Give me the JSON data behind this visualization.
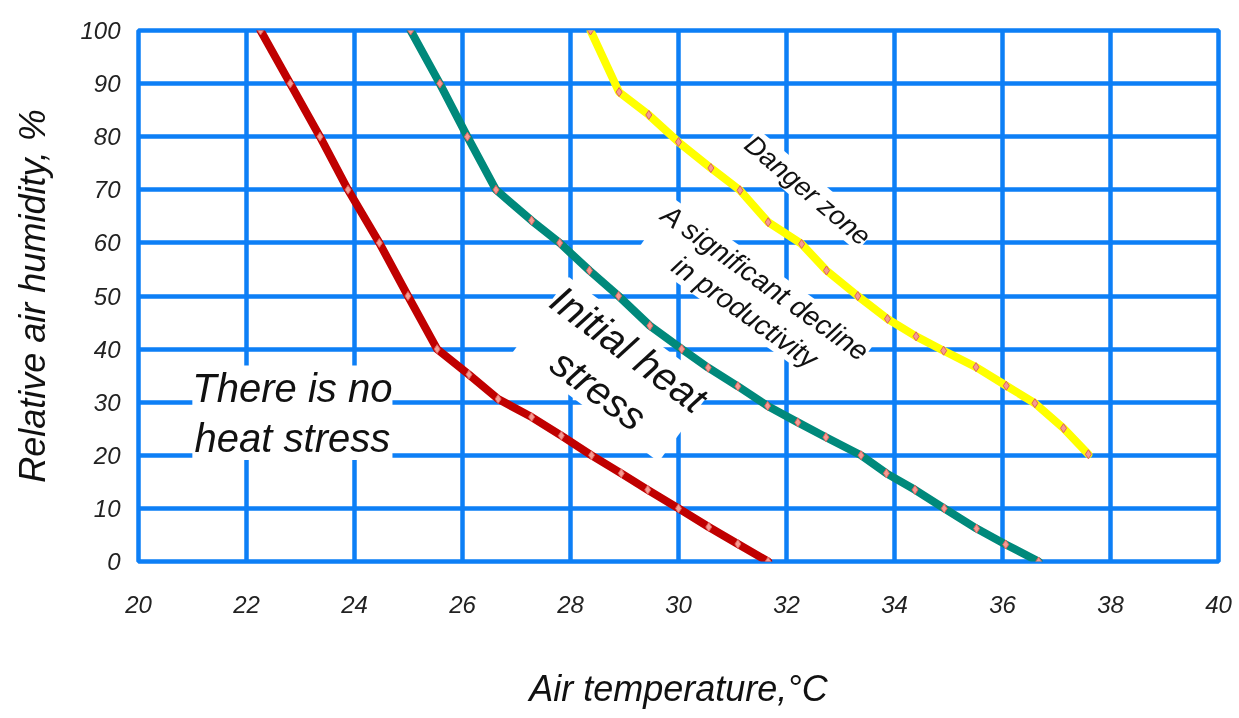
{
  "chart_data": {
    "type": "line",
    "xlabel": "Air temperature,°C",
    "ylabel": "Relative air humidity, %",
    "xlim": [
      20,
      40
    ],
    "ylim": [
      0,
      100
    ],
    "xticks": [
      20,
      22,
      24,
      26,
      28,
      30,
      32,
      34,
      36,
      38,
      40
    ],
    "yticks": [
      0,
      10,
      20,
      30,
      40,
      50,
      60,
      70,
      80,
      90,
      100
    ],
    "grid": true,
    "marker": "diamond",
    "line_style": "solid",
    "series": [
      {
        "color": "#c00000",
        "x": [
          22.26,
          22.81,
          23.36,
          23.88,
          24.46,
          24.99,
          25.53,
          26.12,
          26.66,
          27.28,
          27.83,
          28.39,
          28.94,
          29.43,
          30.0,
          30.56,
          31.1,
          31.66
        ],
        "values": [
          100,
          90,
          80,
          70,
          60,
          50,
          40,
          35.2,
          30.6,
          27.2,
          23.7,
          20,
          16.6,
          13.5,
          10,
          6.5,
          3.3,
          0
        ]
      },
      {
        "color": "#00897b",
        "x": [
          25.04,
          25.58,
          26.09,
          26.62,
          27.28,
          27.8,
          28.35,
          28.89,
          29.47,
          30.06,
          30.55,
          31.1,
          31.65,
          32.21,
          32.73,
          33.38,
          33.85,
          34.38,
          34.92,
          35.52,
          36.06,
          36.67
        ],
        "values": [
          100,
          90,
          80,
          70,
          64.2,
          60,
          54.8,
          50,
          44.4,
          40,
          36.5,
          33,
          29.3,
          26.2,
          23.4,
          20,
          16.6,
          13.5,
          10,
          6.2,
          3.2,
          0
        ]
      },
      {
        "color": "#ffff00",
        "x": [
          28.37,
          28.9,
          29.45,
          30.0,
          30.6,
          31.14,
          31.66,
          32.28,
          32.74,
          33.32,
          33.87,
          34.4,
          34.91,
          35.51,
          36.07,
          36.6,
          37.13,
          37.59
        ],
        "values": [
          100,
          88.4,
          84.1,
          79,
          74.1,
          69.9,
          63.9,
          59.8,
          54.8,
          50,
          45.7,
          42.4,
          39.7,
          36.6,
          33.1,
          29.8,
          25.1,
          20.2
        ]
      }
    ],
    "annotations": [
      "There is no\nheat stress",
      "Initial heat\nstress",
      "A significant decline\nin productivity",
      "Danger zone"
    ]
  }
}
